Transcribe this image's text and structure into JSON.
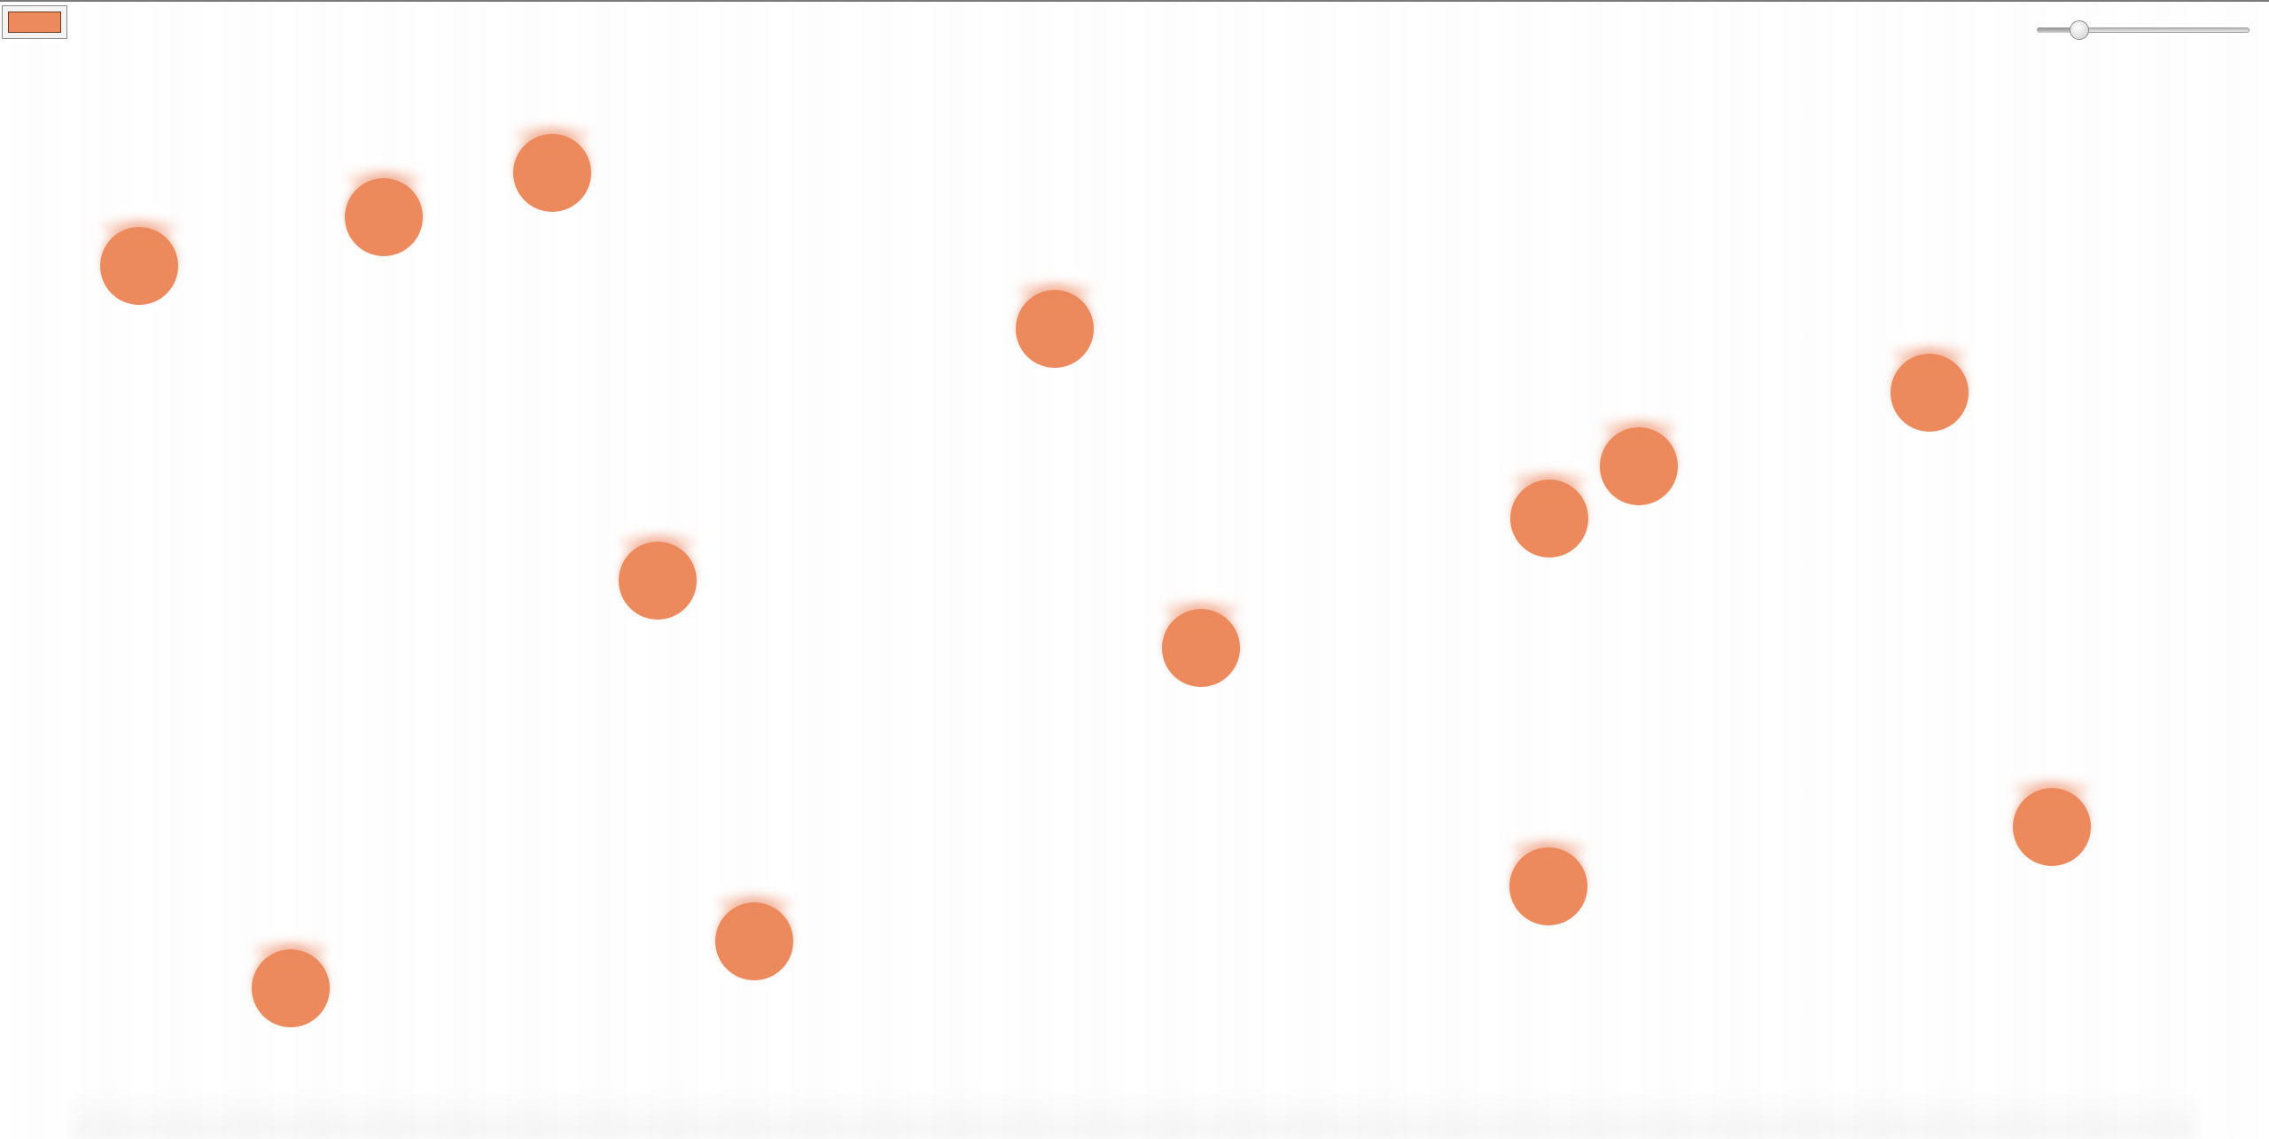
{
  "controls": {
    "color_picker": {
      "value": "#ec8a5d"
    },
    "slider": {
      "value": 0.2
    }
  },
  "colors": {
    "ball": "#ec8a5d"
  },
  "balls": [
    {
      "id": 1
    },
    {
      "id": 2
    },
    {
      "id": 3
    },
    {
      "id": 4
    },
    {
      "id": 5
    },
    {
      "id": 6
    },
    {
      "id": 7
    },
    {
      "id": 8
    },
    {
      "id": 9
    },
    {
      "id": 10
    },
    {
      "id": 11
    },
    {
      "id": 12
    },
    {
      "id": 13
    },
    {
      "id": 14
    }
  ]
}
